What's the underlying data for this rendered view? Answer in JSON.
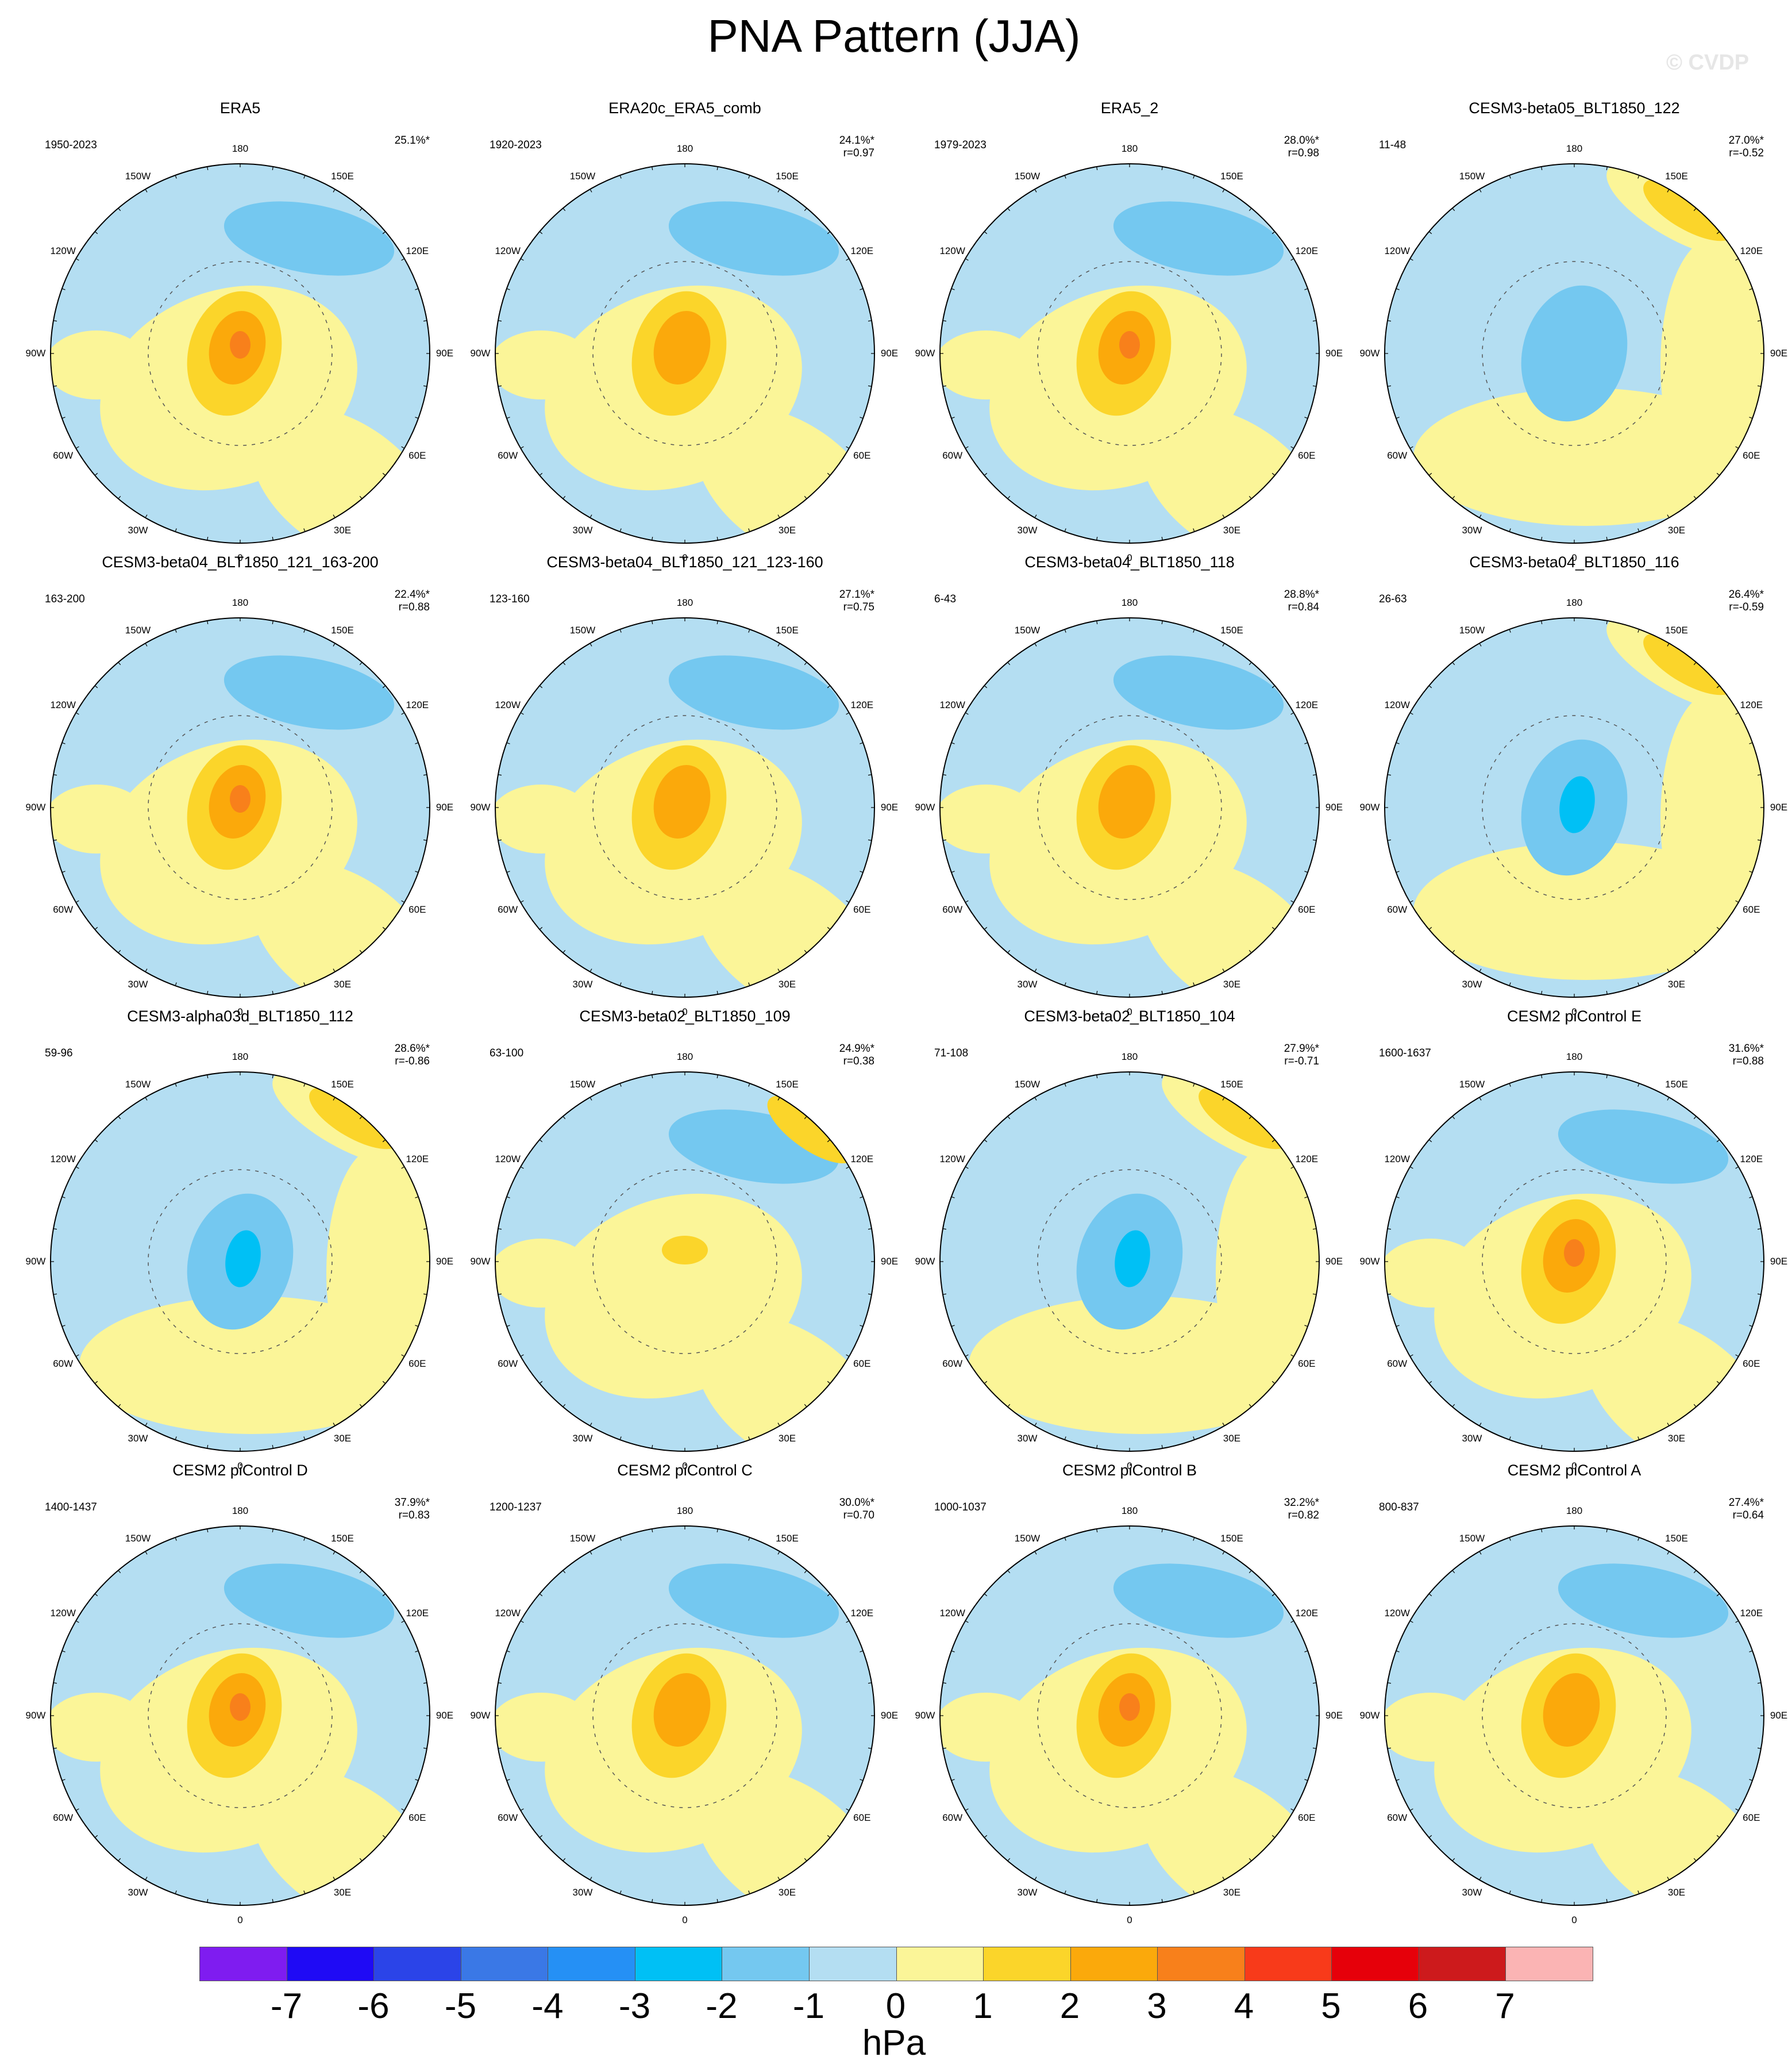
{
  "title": "PNA Pattern (JJA)",
  "watermark": "© CVDP",
  "lon_labels": [
    "180",
    "150E",
    "120E",
    "90E",
    "60E",
    "30E",
    "0",
    "30W",
    "60W",
    "90W",
    "120W",
    "150W"
  ],
  "palette": [
    "#7f1cf0",
    "#1f0af5",
    "#2b44e8",
    "#3a78e6",
    "#2590f5",
    "#00c0f5",
    "#74c8f0",
    "#b4def2",
    "#fbf598",
    "#fbd52a",
    "#fba90b",
    "#f8801b",
    "#f83a1a",
    "#e6000a",
    "#cd1a1c",
    "#fbb4b4"
  ],
  "colorbar": {
    "labels": [
      "-7",
      "-6",
      "-5",
      "-4",
      "-3",
      "-2",
      "-1",
      "0",
      "1",
      "2",
      "3",
      "4",
      "5",
      "6",
      "7"
    ],
    "units": "hPa"
  },
  "panels": [
    {
      "title": "ERA5",
      "period": "1950-2023",
      "pct": "25.1%*",
      "r": "",
      "pattern": "pos",
      "intensity": 3
    },
    {
      "title": "ERA20c_ERA5_comb",
      "period": "1920-2023",
      "pct": "24.1%*",
      "r": "r=0.97",
      "pattern": "pos",
      "intensity": 2
    },
    {
      "title": "ERA5_2",
      "period": "1979-2023",
      "pct": "28.0%*",
      "r": "r=0.98",
      "pattern": "pos",
      "intensity": 3
    },
    {
      "title": "CESM3-beta05_BLT1850_122",
      "period": "11-48",
      "pct": "27.0%*",
      "r": "r=-0.52",
      "pattern": "neg",
      "intensity": 1
    },
    {
      "title": "CESM3-beta04_BLT1850_121_163-200",
      "period": "163-200",
      "pct": "22.4%*",
      "r": "r=0.88",
      "pattern": "pos",
      "intensity": 3
    },
    {
      "title": "CESM3-beta04_BLT1850_121_123-160",
      "period": "123-160",
      "pct": "27.1%*",
      "r": "r=0.75",
      "pattern": "pos",
      "intensity": 2
    },
    {
      "title": "CESM3-beta04_BLT1850_118",
      "period": "6-43",
      "pct": "28.8%*",
      "r": "r=0.84",
      "pattern": "pos",
      "intensity": 2
    },
    {
      "title": "CESM3-beta04_BLT1850_116",
      "period": "26-63",
      "pct": "26.4%*",
      "r": "r=-0.59",
      "pattern": "neg",
      "intensity": 2
    },
    {
      "title": "CESM3-alpha03d_BLT1850_112",
      "period": "59-96",
      "pct": "28.6%*",
      "r": "r=-0.86",
      "pattern": "neg",
      "intensity": 2
    },
    {
      "title": "CESM3-beta02_BLT1850_109",
      "period": "63-100",
      "pct": "24.9%*",
      "r": "r=0.38",
      "pattern": "weakpos",
      "intensity": 1
    },
    {
      "title": "CESM3-beta02_BLT1850_104",
      "period": "71-108",
      "pct": "27.9%*",
      "r": "r=-0.71",
      "pattern": "neg",
      "intensity": 2
    },
    {
      "title": "CESM2 piControl E",
      "period": "1600-1637",
      "pct": "31.6%*",
      "r": "r=0.88",
      "pattern": "pos",
      "intensity": 3
    },
    {
      "title": "CESM2 piControl D",
      "period": "1400-1437",
      "pct": "37.9%*",
      "r": "r=0.83",
      "pattern": "pos",
      "intensity": 3
    },
    {
      "title": "CESM2 piControl C",
      "period": "1200-1237",
      "pct": "30.0%*",
      "r": "r=0.70",
      "pattern": "pos",
      "intensity": 2
    },
    {
      "title": "CESM2 piControl B",
      "period": "1000-1037",
      "pct": "32.2%*",
      "r": "r=0.82",
      "pattern": "pos",
      "intensity": 3
    },
    {
      "title": "CESM2 piControl A",
      "period": "800-837",
      "pct": "27.4%*",
      "r": "r=0.64",
      "pattern": "pos",
      "intensity": 2
    }
  ]
}
